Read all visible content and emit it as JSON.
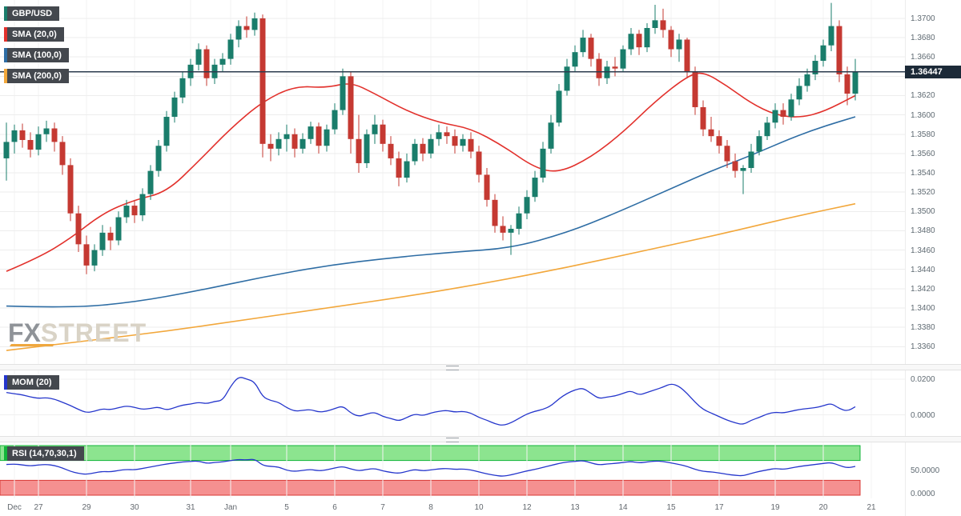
{
  "app": {
    "symbol_badge": "GBP/USD",
    "overlays": [
      {
        "label": "SMA (20,0)",
        "color": "#e2312c"
      },
      {
        "label": "SMA (100,0)",
        "color": "#2e6da4"
      },
      {
        "label": "SMA (200,0)",
        "color": "#f2a73b"
      }
    ],
    "mom_badge": "MOM (20)",
    "rsi_badge": "RSI (14,70,30,1)",
    "watermark_fx": "FX",
    "watermark_street": "STREET",
    "last_price": "1.36447"
  },
  "chart_data": {
    "type": "candlestick",
    "title": "GBP/USD with SMA(20), SMA(100), SMA(200), MOM(20) and RSI(14,70,30,1)",
    "colors": {
      "up": "#1a7d6b",
      "down": "#c53932",
      "sma20": "#e2312c",
      "sma100": "#2e6da4",
      "sma200": "#f2a73b",
      "indicator": "#2536cc",
      "price_line": "#2b3b4d",
      "symbol_accent": "#1a7d6b",
      "rsi_accent": "#12b53a",
      "band_green": "#8ce48f",
      "band_green_edge": "#12b53a",
      "band_red": "#f59090",
      "band_red_edge": "#d93a36"
    },
    "price_axis": {
      "min": 1.3342,
      "max": 1.3719,
      "tick_labels": [
        "1.3700",
        "1.3680",
        "1.3660",
        "1.3640",
        "1.3620",
        "1.3600",
        "1.3580",
        "1.3560",
        "1.3540",
        "1.3520",
        "1.3500",
        "1.3480",
        "1.3460",
        "1.3440",
        "1.3420",
        "1.3400",
        "1.3380",
        "1.3360"
      ]
    },
    "last_price": 1.36447,
    "x_ticks": [
      {
        "i": 1,
        "label": "Dec"
      },
      {
        "i": 4,
        "label": "27"
      },
      {
        "i": 10,
        "label": "29"
      },
      {
        "i": 16,
        "label": "30"
      },
      {
        "i": 23,
        "label": "31"
      },
      {
        "i": 28,
        "label": "Jan"
      },
      {
        "i": 35,
        "label": "5"
      },
      {
        "i": 41,
        "label": "6"
      },
      {
        "i": 47,
        "label": "7"
      },
      {
        "i": 53,
        "label": "8"
      },
      {
        "i": 59,
        "label": "10"
      },
      {
        "i": 65,
        "label": "12"
      },
      {
        "i": 71,
        "label": "13"
      },
      {
        "i": 77,
        "label": "14"
      },
      {
        "i": 83,
        "label": "15"
      },
      {
        "i": 89,
        "label": "17"
      },
      {
        "i": 96,
        "label": "19"
      },
      {
        "i": 102,
        "label": "20"
      },
      {
        "i": 108,
        "label": "21"
      }
    ],
    "candles": [
      [
        1.3555,
        1.3592,
        1.3532,
        1.3572
      ],
      [
        1.3572,
        1.359,
        1.356,
        1.3584
      ],
      [
        1.3584,
        1.3591,
        1.3566,
        1.3574
      ],
      [
        1.3574,
        1.3582,
        1.3556,
        1.3564
      ],
      [
        1.3564,
        1.3588,
        1.3558,
        1.358
      ],
      [
        1.358,
        1.3594,
        1.3572,
        1.3586
      ],
      [
        1.3586,
        1.3592,
        1.3562,
        1.3572
      ],
      [
        1.3572,
        1.3578,
        1.3538,
        1.3548
      ],
      [
        1.3548,
        1.3555,
        1.349,
        1.3498
      ],
      [
        1.3498,
        1.3506,
        1.3458,
        1.3466
      ],
      [
        1.3466,
        1.3475,
        1.3435,
        1.3444
      ],
      [
        1.3444,
        1.3466,
        1.3438,
        1.346
      ],
      [
        1.346,
        1.3486,
        1.3454,
        1.3478
      ],
      [
        1.3478,
        1.3484,
        1.346,
        1.347
      ],
      [
        1.347,
        1.35,
        1.3465,
        1.3494
      ],
      [
        1.3494,
        1.3512,
        1.3488,
        1.3506
      ],
      [
        1.3506,
        1.3512,
        1.3488,
        1.3496
      ],
      [
        1.3496,
        1.3524,
        1.349,
        1.3518
      ],
      [
        1.3518,
        1.3548,
        1.3512,
        1.3542
      ],
      [
        1.3542,
        1.3574,
        1.3536,
        1.3568
      ],
      [
        1.3568,
        1.3604,
        1.3562,
        1.3598
      ],
      [
        1.3598,
        1.3624,
        1.3592,
        1.3618
      ],
      [
        1.3618,
        1.3644,
        1.3612,
        1.3638
      ],
      [
        1.3638,
        1.3658,
        1.363,
        1.3652
      ],
      [
        1.3652,
        1.3674,
        1.3646,
        1.3668
      ],
      [
        1.3668,
        1.3672,
        1.363,
        1.3638
      ],
      [
        1.3638,
        1.3658,
        1.3632,
        1.3652
      ],
      [
        1.3652,
        1.3664,
        1.3644,
        1.3658
      ],
      [
        1.3658,
        1.3684,
        1.3652,
        1.3678
      ],
      [
        1.3678,
        1.3698,
        1.367,
        1.3692
      ],
      [
        1.3692,
        1.3702,
        1.368,
        1.3688
      ],
      [
        1.3688,
        1.3706,
        1.3682,
        1.37
      ],
      [
        1.37,
        1.3704,
        1.3556,
        1.357
      ],
      [
        1.357,
        1.358,
        1.3552,
        1.3565
      ],
      [
        1.3565,
        1.3582,
        1.3558,
        1.3575
      ],
      [
        1.3575,
        1.359,
        1.3562,
        1.358
      ],
      [
        1.358,
        1.3586,
        1.3556,
        1.3565
      ],
      [
        1.3565,
        1.3581,
        1.356,
        1.3575
      ],
      [
        1.3575,
        1.3593,
        1.357,
        1.3588
      ],
      [
        1.3588,
        1.3592,
        1.356,
        1.3568
      ],
      [
        1.3568,
        1.359,
        1.3562,
        1.3585
      ],
      [
        1.3585,
        1.3612,
        1.358,
        1.3605
      ],
      [
        1.3605,
        1.3648,
        1.36,
        1.364
      ],
      [
        1.364,
        1.3645,
        1.356,
        1.3575
      ],
      [
        1.3575,
        1.36,
        1.354,
        1.355
      ],
      [
        1.355,
        1.3585,
        1.3545,
        1.358
      ],
      [
        1.358,
        1.36,
        1.357,
        1.359
      ],
      [
        1.359,
        1.3595,
        1.3562,
        1.357
      ],
      [
        1.357,
        1.3578,
        1.3548,
        1.3555
      ],
      [
        1.3555,
        1.3562,
        1.3526,
        1.3535
      ],
      [
        1.3535,
        1.356,
        1.353,
        1.3552
      ],
      [
        1.3552,
        1.3575,
        1.3548,
        1.357
      ],
      [
        1.357,
        1.3576,
        1.3552,
        1.356
      ],
      [
        1.356,
        1.358,
        1.3555,
        1.3575
      ],
      [
        1.3575,
        1.359,
        1.3568,
        1.3582
      ],
      [
        1.3582,
        1.3588,
        1.357,
        1.3578
      ],
      [
        1.3578,
        1.3585,
        1.356,
        1.3568
      ],
      [
        1.3568,
        1.358,
        1.3562,
        1.3575
      ],
      [
        1.3575,
        1.3582,
        1.3555,
        1.3562
      ],
      [
        1.3562,
        1.3568,
        1.353,
        1.3538
      ],
      [
        1.3538,
        1.3545,
        1.3505,
        1.3512
      ],
      [
        1.3512,
        1.3518,
        1.3478,
        1.3485
      ],
      [
        1.3485,
        1.3495,
        1.347,
        1.3478
      ],
      [
        1.3478,
        1.3486,
        1.3455,
        1.3482
      ],
      [
        1.3482,
        1.3505,
        1.3476,
        1.3498
      ],
      [
        1.3498,
        1.3522,
        1.3492,
        1.3515
      ],
      [
        1.3515,
        1.3542,
        1.351,
        1.3535
      ],
      [
        1.3535,
        1.3572,
        1.353,
        1.3565
      ],
      [
        1.3565,
        1.36,
        1.356,
        1.3592
      ],
      [
        1.3592,
        1.3632,
        1.3588,
        1.3625
      ],
      [
        1.3625,
        1.3658,
        1.362,
        1.365
      ],
      [
        1.365,
        1.3672,
        1.3645,
        1.3665
      ],
      [
        1.3665,
        1.3688,
        1.366,
        1.368
      ],
      [
        1.368,
        1.3684,
        1.365,
        1.3658
      ],
      [
        1.3658,
        1.3664,
        1.363,
        1.3638
      ],
      [
        1.3638,
        1.3656,
        1.3632,
        1.365
      ],
      [
        1.365,
        1.366,
        1.364,
        1.3648
      ],
      [
        1.3648,
        1.3672,
        1.3644,
        1.3668
      ],
      [
        1.3668,
        1.369,
        1.3662,
        1.3684
      ],
      [
        1.3684,
        1.3688,
        1.3662,
        1.367
      ],
      [
        1.367,
        1.3695,
        1.3665,
        1.369
      ],
      [
        1.369,
        1.3714,
        1.3684,
        1.3698
      ],
      [
        1.3698,
        1.371,
        1.368,
        1.3688
      ],
      [
        1.3688,
        1.3692,
        1.366,
        1.3668
      ],
      [
        1.3668,
        1.3684,
        1.3655,
        1.3678
      ],
      [
        1.3678,
        1.368,
        1.3638,
        1.3645
      ],
      [
        1.3645,
        1.365,
        1.36,
        1.3608
      ],
      [
        1.3608,
        1.3615,
        1.3578,
        1.3585
      ],
      [
        1.3585,
        1.3598,
        1.3572,
        1.3578
      ],
      [
        1.3578,
        1.3584,
        1.356,
        1.3568
      ],
      [
        1.3568,
        1.3574,
        1.3545,
        1.3552
      ],
      [
        1.3552,
        1.356,
        1.3535,
        1.3542
      ],
      [
        1.3542,
        1.3548,
        1.3518,
        1.3545
      ],
      [
        1.3545,
        1.357,
        1.354,
        1.3562
      ],
      [
        1.3562,
        1.3584,
        1.3558,
        1.3578
      ],
      [
        1.3578,
        1.3598,
        1.3574,
        1.3592
      ],
      [
        1.3592,
        1.3612,
        1.3586,
        1.3605
      ],
      [
        1.3605,
        1.3612,
        1.359,
        1.3598
      ],
      [
        1.3598,
        1.3622,
        1.3594,
        1.3616
      ],
      [
        1.3616,
        1.3638,
        1.361,
        1.363
      ],
      [
        1.363,
        1.3648,
        1.3624,
        1.3642
      ],
      [
        1.3642,
        1.3662,
        1.3636,
        1.3656
      ],
      [
        1.3656,
        1.3678,
        1.365,
        1.3672
      ],
      [
        1.3672,
        1.3716,
        1.3666,
        1.3692
      ],
      [
        1.3692,
        1.3698,
        1.3634,
        1.3642
      ],
      [
        1.3642,
        1.365,
        1.361,
        1.3622
      ],
      [
        1.3622,
        1.3658,
        1.3615,
        1.36447
      ]
    ],
    "sma": [
      {
        "name": "SMA 20",
        "points": [
          [
            0,
            1.3438
          ],
          [
            4,
            1.3452
          ],
          [
            8,
            1.3472
          ],
          [
            12,
            1.3498
          ],
          [
            16,
            1.3512
          ],
          [
            20,
            1.352
          ],
          [
            24,
            1.3552
          ],
          [
            28,
            1.3586
          ],
          [
            32,
            1.3614
          ],
          [
            36,
            1.363
          ],
          [
            40,
            1.3628
          ],
          [
            43,
            1.3634
          ],
          [
            46,
            1.3622
          ],
          [
            50,
            1.3604
          ],
          [
            54,
            1.3592
          ],
          [
            58,
            1.3586
          ],
          [
            62,
            1.3568
          ],
          [
            66,
            1.3545
          ],
          [
            69,
            1.354
          ],
          [
            73,
            1.3556
          ],
          [
            77,
            1.3582
          ],
          [
            81,
            1.3614
          ],
          [
            85,
            1.364
          ],
          [
            87,
            1.3645
          ],
          [
            90,
            1.363
          ],
          [
            93,
            1.3612
          ],
          [
            96,
            1.36
          ],
          [
            99,
            1.3597
          ],
          [
            102,
            1.3603
          ],
          [
            106,
            1.362
          ]
        ]
      },
      {
        "name": "SMA 100",
        "points": [
          [
            0,
            1.3402
          ],
          [
            8,
            1.34
          ],
          [
            16,
            1.3406
          ],
          [
            24,
            1.3418
          ],
          [
            32,
            1.3432
          ],
          [
            40,
            1.3444
          ],
          [
            48,
            1.3452
          ],
          [
            56,
            1.3458
          ],
          [
            63,
            1.3462
          ],
          [
            70,
            1.3478
          ],
          [
            76,
            1.3498
          ],
          [
            82,
            1.352
          ],
          [
            88,
            1.3542
          ],
          [
            93,
            1.3558
          ],
          [
            98,
            1.3576
          ],
          [
            102,
            1.3588
          ],
          [
            106,
            1.3598
          ]
        ]
      },
      {
        "name": "SMA 200",
        "points": [
          [
            0,
            1.3356
          ],
          [
            10,
            1.3366
          ],
          [
            20,
            1.3376
          ],
          [
            30,
            1.3388
          ],
          [
            40,
            1.34
          ],
          [
            50,
            1.3412
          ],
          [
            60,
            1.3426
          ],
          [
            70,
            1.3442
          ],
          [
            80,
            1.346
          ],
          [
            90,
            1.3478
          ],
          [
            98,
            1.3494
          ],
          [
            106,
            1.3508
          ]
        ]
      }
    ],
    "mom": {
      "period": 20,
      "range": [
        -0.0105,
        0.0235
      ],
      "axis_marks": [
        {
          "v": 0.02,
          "label": "0.0200"
        },
        {
          "v": 0.0,
          "label": "0.0000"
        }
      ],
      "values": [
        0.0125,
        0.0118,
        0.0112,
        0.01,
        0.0092,
        0.0096,
        0.0088,
        0.007,
        0.0052,
        0.003,
        0.0012,
        0.002,
        0.0034,
        0.0028,
        0.004,
        0.005,
        0.0042,
        0.003,
        0.0036,
        0.0044,
        0.0026,
        0.004,
        0.0055,
        0.006,
        0.007,
        0.0062,
        0.0075,
        0.008,
        0.016,
        0.0215,
        0.02,
        0.0185,
        0.01,
        0.008,
        0.007,
        0.004,
        0.002,
        0.0025,
        0.003,
        0.0015,
        0.002,
        0.0035,
        0.005,
        0.001,
        -0.001,
        0.0005,
        0.0015,
        -0.001,
        -0.002,
        -0.0035,
        -0.0015,
        0.0005,
        -0.0005,
        0.001,
        0.002,
        0.0025,
        0.0015,
        0.002,
        0.001,
        -0.0015,
        -0.003,
        -0.005,
        -0.006,
        -0.0045,
        -0.002,
        0.0005,
        0.002,
        0.003,
        0.005,
        0.009,
        0.012,
        0.014,
        0.015,
        0.012,
        0.009,
        0.01,
        0.0105,
        0.012,
        0.0135,
        0.011,
        0.0125,
        0.014,
        0.0155,
        0.0175,
        0.016,
        0.012,
        0.007,
        0.003,
        0.001,
        -0.001,
        -0.003,
        -0.0045,
        -0.0055,
        -0.003,
        -0.0015,
        0.0005,
        0.0015,
        0.001,
        0.002,
        0.003,
        0.0035,
        0.004,
        0.005,
        0.0065,
        0.0035,
        0.002,
        0.0045
      ]
    },
    "rsi": {
      "period": 14,
      "upper": 70,
      "lower": 30,
      "axis_marks": [
        {
          "v": 50,
          "label": "50.0000"
        },
        {
          "v": 0,
          "label": "0.0000"
        }
      ],
      "values": [
        62,
        63,
        61,
        59,
        61,
        62,
        60,
        55,
        48,
        44,
        42,
        45,
        48,
        47,
        50,
        52,
        51,
        54,
        57,
        60,
        63,
        65,
        67,
        68,
        69,
        64,
        66,
        67,
        70,
        72,
        71,
        73,
        60,
        58,
        57,
        50,
        48,
        50,
        52,
        49,
        51,
        55,
        58,
        53,
        49,
        52,
        54,
        49,
        46,
        44,
        48,
        52,
        49,
        51,
        53,
        54,
        52,
        53,
        51,
        47,
        43,
        40,
        38,
        41,
        45,
        49,
        52,
        56,
        60,
        64,
        67,
        68,
        70,
        65,
        61,
        63,
        64,
        66,
        68,
        65,
        67,
        69,
        68,
        65,
        62,
        58,
        52,
        48,
        47,
        45,
        42,
        40,
        39,
        44,
        48,
        51,
        54,
        52,
        55,
        58,
        60,
        62,
        64,
        66,
        60,
        55,
        58
      ]
    }
  }
}
